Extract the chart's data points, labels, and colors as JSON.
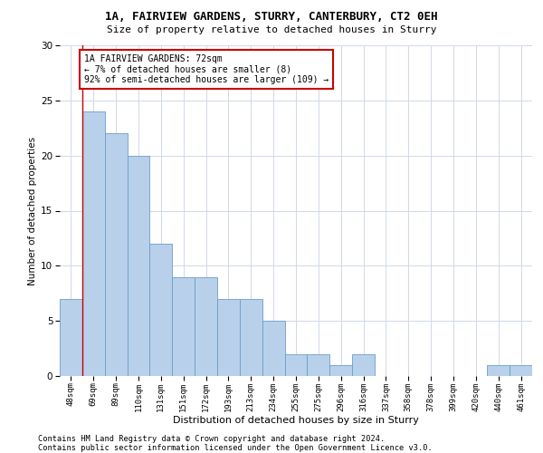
{
  "title1": "1A, FAIRVIEW GARDENS, STURRY, CANTERBURY, CT2 0EH",
  "title2": "Size of property relative to detached houses in Sturry",
  "xlabel": "Distribution of detached houses by size in Sturry",
  "ylabel": "Number of detached properties",
  "categories": [
    "48sqm",
    "69sqm",
    "89sqm",
    "110sqm",
    "131sqm",
    "151sqm",
    "172sqm",
    "193sqm",
    "213sqm",
    "234sqm",
    "255sqm",
    "275sqm",
    "296sqm",
    "316sqm",
    "337sqm",
    "358sqm",
    "378sqm",
    "399sqm",
    "420sqm",
    "440sqm",
    "461sqm"
  ],
  "values": [
    7,
    24,
    22,
    20,
    12,
    9,
    9,
    7,
    7,
    5,
    2,
    2,
    1,
    2,
    0,
    0,
    0,
    0,
    0,
    1,
    1
  ],
  "bar_color": "#b8d0ea",
  "bar_edge_color": "#6a9fc8",
  "annotation_text": "1A FAIRVIEW GARDENS: 72sqm\n← 7% of detached houses are smaller (8)\n92% of semi-detached houses are larger (109) →",
  "annotation_box_color": "#ffffff",
  "annotation_box_edge_color": "#cc0000",
  "ylim": [
    0,
    30
  ],
  "yticks": [
    0,
    5,
    10,
    15,
    20,
    25,
    30
  ],
  "footer1": "Contains HM Land Registry data © Crown copyright and database right 2024.",
  "footer2": "Contains public sector information licensed under the Open Government Licence v3.0.",
  "vline_color": "#cc0000",
  "background_color": "#ffffff",
  "grid_color": "#d0d8e8"
}
